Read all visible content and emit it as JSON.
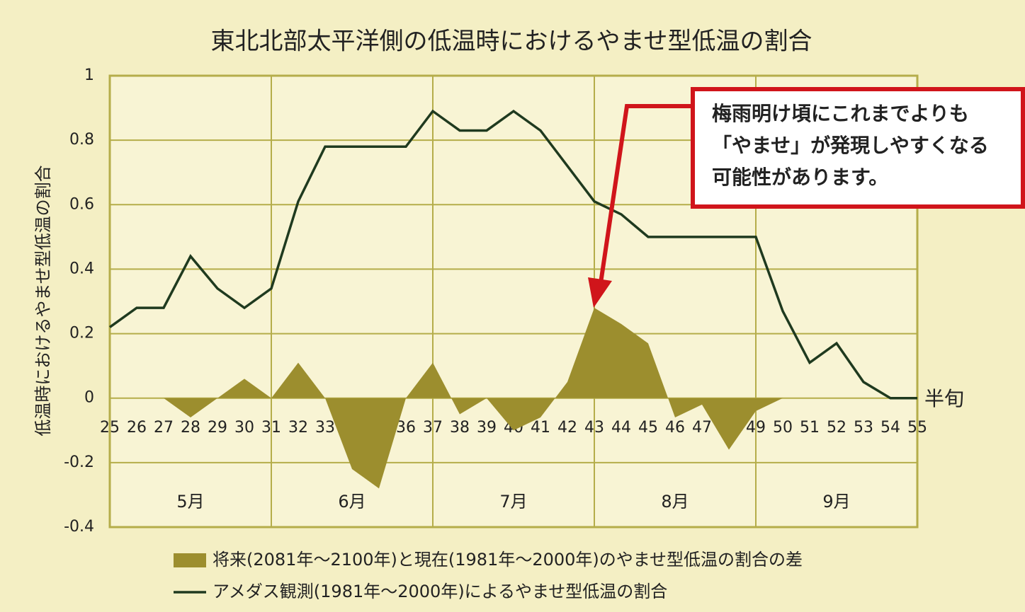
{
  "chart_data": {
    "type": "line",
    "title": "東北北部太平洋側の低温時におけるやませ型低温の割合",
    "y_label": "低温時におけるやませ型低温の割合",
    "x_label": "半旬",
    "x": [
      25,
      26,
      27,
      28,
      29,
      30,
      31,
      32,
      33,
      34,
      35,
      36,
      37,
      38,
      39,
      40,
      41,
      42,
      43,
      44,
      45,
      46,
      47,
      48,
      49,
      50,
      51,
      52,
      53,
      54,
      55
    ],
    "xlim": [
      25,
      55
    ],
    "xticks": [
      25,
      26,
      27,
      28,
      29,
      30,
      31,
      32,
      33,
      34,
      35,
      36,
      37,
      38,
      39,
      40,
      41,
      42,
      43,
      44,
      45,
      46,
      47,
      48,
      49,
      50,
      51,
      52,
      53,
      54,
      55
    ],
    "months": [
      "5月",
      "6月",
      "7月",
      "8月",
      "9月"
    ],
    "month_bounds": [
      25,
      31,
      37,
      43,
      49,
      55
    ],
    "ylim": [
      -0.4,
      1
    ],
    "yticks": [
      -0.4,
      -0.2,
      0,
      0.2,
      0.4,
      0.6,
      0.8,
      1
    ],
    "grid": true,
    "series": [
      {
        "name": "将来(2081年〜2100年)と現在(1981年〜2000年)のやませ型低温の割合の差",
        "type": "area",
        "color": "#9c8e2e",
        "values": [
          0,
          0,
          0,
          -0.06,
          0,
          0.06,
          0,
          0.11,
          0,
          -0.22,
          -0.28,
          0,
          0.11,
          -0.05,
          0,
          -0.1,
          -0.06,
          0.05,
          0.28,
          0.23,
          0.17,
          -0.06,
          -0.02,
          -0.16,
          -0.04,
          0,
          0,
          0,
          0,
          0,
          0
        ]
      },
      {
        "name": "アメダス観測(1981年〜2000年)によるやませ型低温の割合",
        "type": "line",
        "color": "#1f3a1f",
        "values": [
          0.22,
          0.28,
          0.28,
          0.44,
          0.34,
          0.28,
          0.34,
          0.61,
          0.78,
          0.78,
          0.78,
          0.78,
          0.89,
          0.83,
          0.83,
          0.89,
          0.83,
          0.72,
          0.61,
          0.57,
          0.5,
          0.5,
          0.5,
          0.5,
          0.5,
          0.27,
          0.11,
          0.17,
          0.05,
          0,
          0
        ]
      }
    ],
    "annotation": [
      "梅雨明け頃にこれまでよりも",
      "「やませ」が発現しやすくなる",
      "可能性があります。"
    ]
  }
}
